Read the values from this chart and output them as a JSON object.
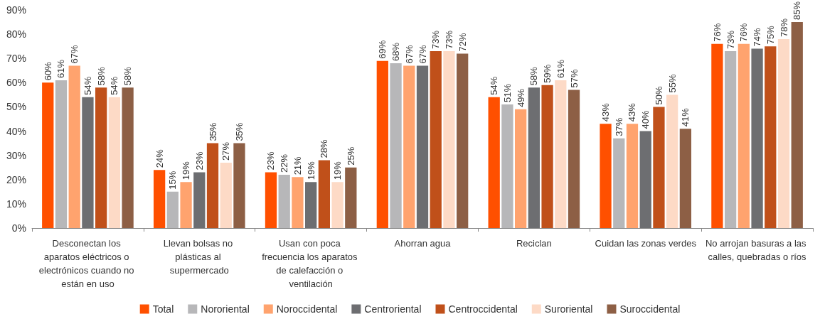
{
  "chart_data": {
    "type": "bar",
    "categories": [
      "Desconectan los aparatos eléctricos o electrónicos cuando no están en uso",
      "Llevan bolsas no plásticas al supermercado",
      "Usan con poca frecuencia los aparatos de calefacción o ventilación",
      "Ahorran agua",
      "Reciclan",
      "Cuidan las zonas verdes",
      "No arrojan basuras a las calles, quebradas o ríos"
    ],
    "series": [
      {
        "name": "Total",
        "color": "#ff5000",
        "values": [
          60,
          24,
          23,
          69,
          54,
          43,
          76
        ],
        "value_labels": [
          "60%",
          "24%",
          "23%",
          "69%",
          "54%",
          "43%",
          "76%"
        ]
      },
      {
        "name": "Nororiental",
        "color": "#b7b7b9",
        "values": [
          61,
          15,
          22,
          68,
          51,
          37,
          73
        ],
        "value_labels": [
          "61%",
          "15%",
          "22%",
          "68%",
          "51%",
          "37%",
          "73%"
        ]
      },
      {
        "name": "Noroccidental",
        "color": "#ffa36e",
        "values": [
          67,
          19,
          21,
          67,
          49,
          43,
          76
        ],
        "value_labels": [
          "67%",
          "19%",
          "21%",
          "67%",
          "49%",
          "43%",
          "76%"
        ]
      },
      {
        "name": "Centroriental",
        "color": "#6d6e71",
        "values": [
          54,
          23,
          19,
          67,
          58,
          40,
          74
        ],
        "value_labels": [
          "54%",
          "23%",
          "19%",
          "67%",
          "58%",
          "40%",
          "74%"
        ]
      },
      {
        "name": "Centroccidental",
        "color": "#c0501a",
        "values": [
          58,
          35,
          28,
          73,
          59,
          50,
          75
        ],
        "value_labels": [
          "58%",
          "35%",
          "28%",
          "73%",
          "59%",
          "50%",
          "75%"
        ]
      },
      {
        "name": "Suroriental",
        "color": "#fddac6",
        "values": [
          54,
          27,
          19,
          73,
          61,
          55,
          78
        ],
        "value_labels": [
          "54%",
          "27%",
          "19%",
          "73%",
          "61%",
          "55%",
          "78%"
        ]
      },
      {
        "name": "Suroccidental",
        "color": "#8d5f45",
        "values": [
          58,
          35,
          25,
          72,
          57,
          41,
          85
        ],
        "value_labels": [
          "58%",
          "35%",
          "25%",
          "72%",
          "57%",
          "41%",
          "85%"
        ]
      }
    ],
    "ylim": [
      0,
      90
    ],
    "yticks": [
      {
        "value": 0,
        "label": "0%"
      },
      {
        "value": 10,
        "label": "10%"
      },
      {
        "value": 20,
        "label": "20%"
      },
      {
        "value": 30,
        "label": "30%"
      },
      {
        "value": 40,
        "label": "40%"
      },
      {
        "value": 50,
        "label": "50%"
      },
      {
        "value": 60,
        "label": "60%"
      },
      {
        "value": 70,
        "label": "70%"
      },
      {
        "value": 80,
        "label": "80%"
      },
      {
        "value": 90,
        "label": "90%"
      }
    ],
    "grid": false,
    "legend": "bottom"
  }
}
